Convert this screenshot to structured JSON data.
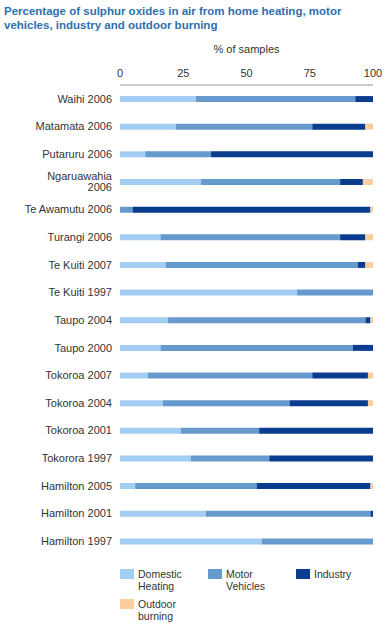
{
  "chart_data": {
    "type": "bar",
    "title": "Percentage of sulphur oxides in air from home heating, motor vehicles, industry and outdoor burning",
    "x_label": "% of samples",
    "orientation": "horizontal",
    "stacked": true,
    "legend": "bottom",
    "grid": false,
    "xlim": [
      0,
      100
    ],
    "xticks": [
      0,
      25,
      50,
      75,
      100
    ],
    "categories": [
      "Waihi 2006",
      "Matamata 2006",
      "Putaruru 2006",
      "Ngaruawahia 2006",
      "Te Awamutu 2006",
      "Turangi 2006",
      "Te Kuiti 2007",
      "Te Kuiti 1997",
      "Taupo 2004",
      "Taupo 2000",
      "Tokoroa 2007",
      "Tokoroa 2004",
      "Tokoroa 2001",
      "Tokorora 1997",
      "Hamilton 2005",
      "Hamilton 2001",
      "Hamilton 1997"
    ],
    "series": [
      {
        "name": "Domestic Heating",
        "color": "#a3cdf3",
        "values": [
          30,
          22,
          10,
          32,
          0,
          16,
          18,
          70,
          19,
          16,
          11,
          17,
          24,
          28,
          6,
          34,
          56
        ]
      },
      {
        "name": "Motor Vehicles",
        "color": "#6699cc",
        "values": [
          63,
          54,
          26,
          55,
          5,
          71,
          76,
          30,
          78,
          76,
          65,
          50,
          31,
          31,
          48,
          65,
          44
        ]
      },
      {
        "name": "Industry",
        "color": "#0b3d8f",
        "values": [
          7,
          21,
          64,
          9,
          94,
          10,
          3,
          0,
          2,
          8,
          22,
          31,
          45,
          41,
          45,
          1,
          0
        ]
      },
      {
        "name": "Outdoor burning",
        "color": "#f9cf9f",
        "values": [
          0,
          3,
          0,
          4,
          1,
          3,
          3,
          0,
          1,
          0,
          2,
          2,
          0,
          0,
          1,
          0,
          0
        ]
      }
    ]
  }
}
